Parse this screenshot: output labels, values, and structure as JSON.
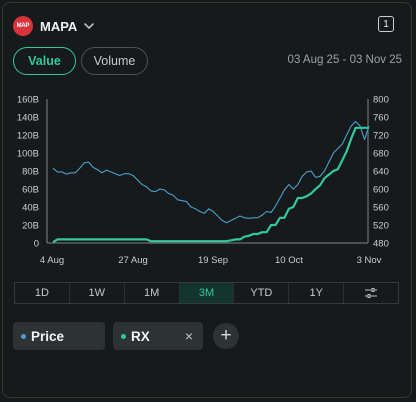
{
  "header": {
    "logo_text": "MAP",
    "ticker": "MAPA",
    "badge": "1"
  },
  "toggles": {
    "value": "Value",
    "volume": "Volume"
  },
  "date_range": "03 Aug 25 - 03 Nov 25",
  "timeframes": [
    "1D",
    "1W",
    "1M",
    "3M",
    "YTD",
    "1Y"
  ],
  "active_timeframe": "3M",
  "chips": {
    "price": {
      "label": "Price",
      "color": "#4a9fd4"
    },
    "rx": {
      "label": "RX",
      "color": "#33c9a0",
      "close": "×"
    }
  },
  "add_symbol": "+",
  "chart_data": {
    "type": "line",
    "x_labels": [
      "4 Aug",
      "27 Aug",
      "19 Sep",
      "10 Oct",
      "3 Nov"
    ],
    "y_left": {
      "ticks": [
        "0",
        "20B",
        "40B",
        "60B",
        "80B",
        "100B",
        "120B",
        "140B",
        "160B"
      ],
      "range": [
        0,
        160
      ]
    },
    "y_right": {
      "ticks": [
        "480",
        "500",
        "520",
        "540",
        "560",
        "580",
        "600",
        "620",
        "640",
        "660",
        "680",
        "700",
        "720",
        "740",
        "760",
        "780",
        "800"
      ],
      "range": [
        480,
        800
      ],
      "shown": [
        "480",
        "520",
        "560",
        "600",
        "640",
        "680",
        "720",
        "760",
        "800"
      ]
    },
    "series": [
      {
        "key": "price",
        "color": "#4a9fd4",
        "axis": "right",
        "points": [
          [
            0,
            646
          ],
          [
            1,
            638
          ],
          [
            2,
            638
          ],
          [
            3,
            633
          ],
          [
            4,
            636
          ],
          [
            5,
            636
          ],
          [
            6,
            646
          ],
          [
            7,
            658
          ],
          [
            8,
            660
          ],
          [
            9,
            648
          ],
          [
            10,
            643
          ],
          [
            11,
            636
          ],
          [
            12,
            642
          ],
          [
            13,
            638
          ],
          [
            14,
            634
          ],
          [
            15,
            630
          ],
          [
            16,
            634
          ],
          [
            17,
            634
          ],
          [
            18,
            630
          ],
          [
            19,
            620
          ],
          [
            20,
            610
          ],
          [
            21,
            605
          ],
          [
            22,
            596
          ],
          [
            23,
            594
          ],
          [
            24,
            600
          ],
          [
            25,
            598
          ],
          [
            26,
            590
          ],
          [
            27,
            586
          ],
          [
            28,
            576
          ],
          [
            29,
            574
          ],
          [
            30,
            572
          ],
          [
            31,
            560
          ],
          [
            32,
            556
          ],
          [
            33,
            550
          ],
          [
            34,
            546
          ],
          [
            35,
            556
          ],
          [
            36,
            550
          ],
          [
            37,
            540
          ],
          [
            38,
            530
          ],
          [
            39,
            525
          ],
          [
            40,
            530
          ],
          [
            41,
            535
          ],
          [
            42,
            540
          ],
          [
            43,
            536
          ],
          [
            44,
            535
          ],
          [
            45,
            536
          ],
          [
            46,
            536
          ],
          [
            47,
            542
          ],
          [
            48,
            550
          ],
          [
            49,
            548
          ],
          [
            50,
            562
          ],
          [
            51,
            580
          ],
          [
            52,
            598
          ],
          [
            53,
            610
          ],
          [
            54,
            600
          ],
          [
            55,
            610
          ],
          [
            56,
            628
          ],
          [
            57,
            638
          ],
          [
            58,
            640
          ],
          [
            59,
            626
          ],
          [
            60,
            628
          ],
          [
            61,
            640
          ],
          [
            62,
            660
          ],
          [
            63,
            680
          ],
          [
            64,
            690
          ],
          [
            65,
            700
          ],
          [
            66,
            720
          ],
          [
            67,
            740
          ],
          [
            68,
            750
          ],
          [
            69,
            740
          ],
          [
            70,
            710
          ],
          [
            71,
            740
          ]
        ]
      },
      {
        "key": "rx",
        "color": "#33c9a0",
        "axis": "left",
        "points": [
          [
            0,
            1
          ],
          [
            1,
            4
          ],
          [
            2,
            4
          ],
          [
            3,
            4
          ],
          [
            4,
            4
          ],
          [
            5,
            4
          ],
          [
            6,
            4
          ],
          [
            7,
            4
          ],
          [
            8,
            4
          ],
          [
            9,
            4
          ],
          [
            10,
            4
          ],
          [
            11,
            4
          ],
          [
            12,
            4
          ],
          [
            13,
            4
          ],
          [
            14,
            4
          ],
          [
            15,
            4
          ],
          [
            16,
            4
          ],
          [
            17,
            4
          ],
          [
            18,
            4
          ],
          [
            19,
            4
          ],
          [
            20,
            4
          ],
          [
            21,
            4
          ],
          [
            22,
            2
          ],
          [
            23,
            2
          ],
          [
            24,
            2
          ],
          [
            25,
            2
          ],
          [
            26,
            2
          ],
          [
            27,
            2
          ],
          [
            28,
            2
          ],
          [
            29,
            2
          ],
          [
            30,
            2
          ],
          [
            31,
            2
          ],
          [
            32,
            2
          ],
          [
            33,
            2
          ],
          [
            34,
            2
          ],
          [
            35,
            2
          ],
          [
            36,
            2
          ],
          [
            37,
            2
          ],
          [
            38,
            2
          ],
          [
            39,
            2
          ],
          [
            40,
            3
          ],
          [
            41,
            4
          ],
          [
            42,
            4
          ],
          [
            43,
            7
          ],
          [
            44,
            8
          ],
          [
            45,
            10
          ],
          [
            46,
            10
          ],
          [
            47,
            12
          ],
          [
            48,
            12
          ],
          [
            49,
            20
          ],
          [
            50,
            20
          ],
          [
            51,
            28
          ],
          [
            52,
            28
          ],
          [
            53,
            38
          ],
          [
            54,
            40
          ],
          [
            55,
            50
          ],
          [
            56,
            50
          ],
          [
            57,
            52
          ],
          [
            58,
            55
          ],
          [
            59,
            60
          ],
          [
            60,
            64
          ],
          [
            61,
            72
          ],
          [
            62,
            76
          ],
          [
            63,
            80
          ],
          [
            64,
            82
          ],
          [
            65,
            92
          ],
          [
            66,
            102
          ],
          [
            67,
            116
          ],
          [
            68,
            128
          ],
          [
            69,
            128
          ],
          [
            70,
            128
          ],
          [
            71,
            128
          ]
        ]
      }
    ]
  }
}
